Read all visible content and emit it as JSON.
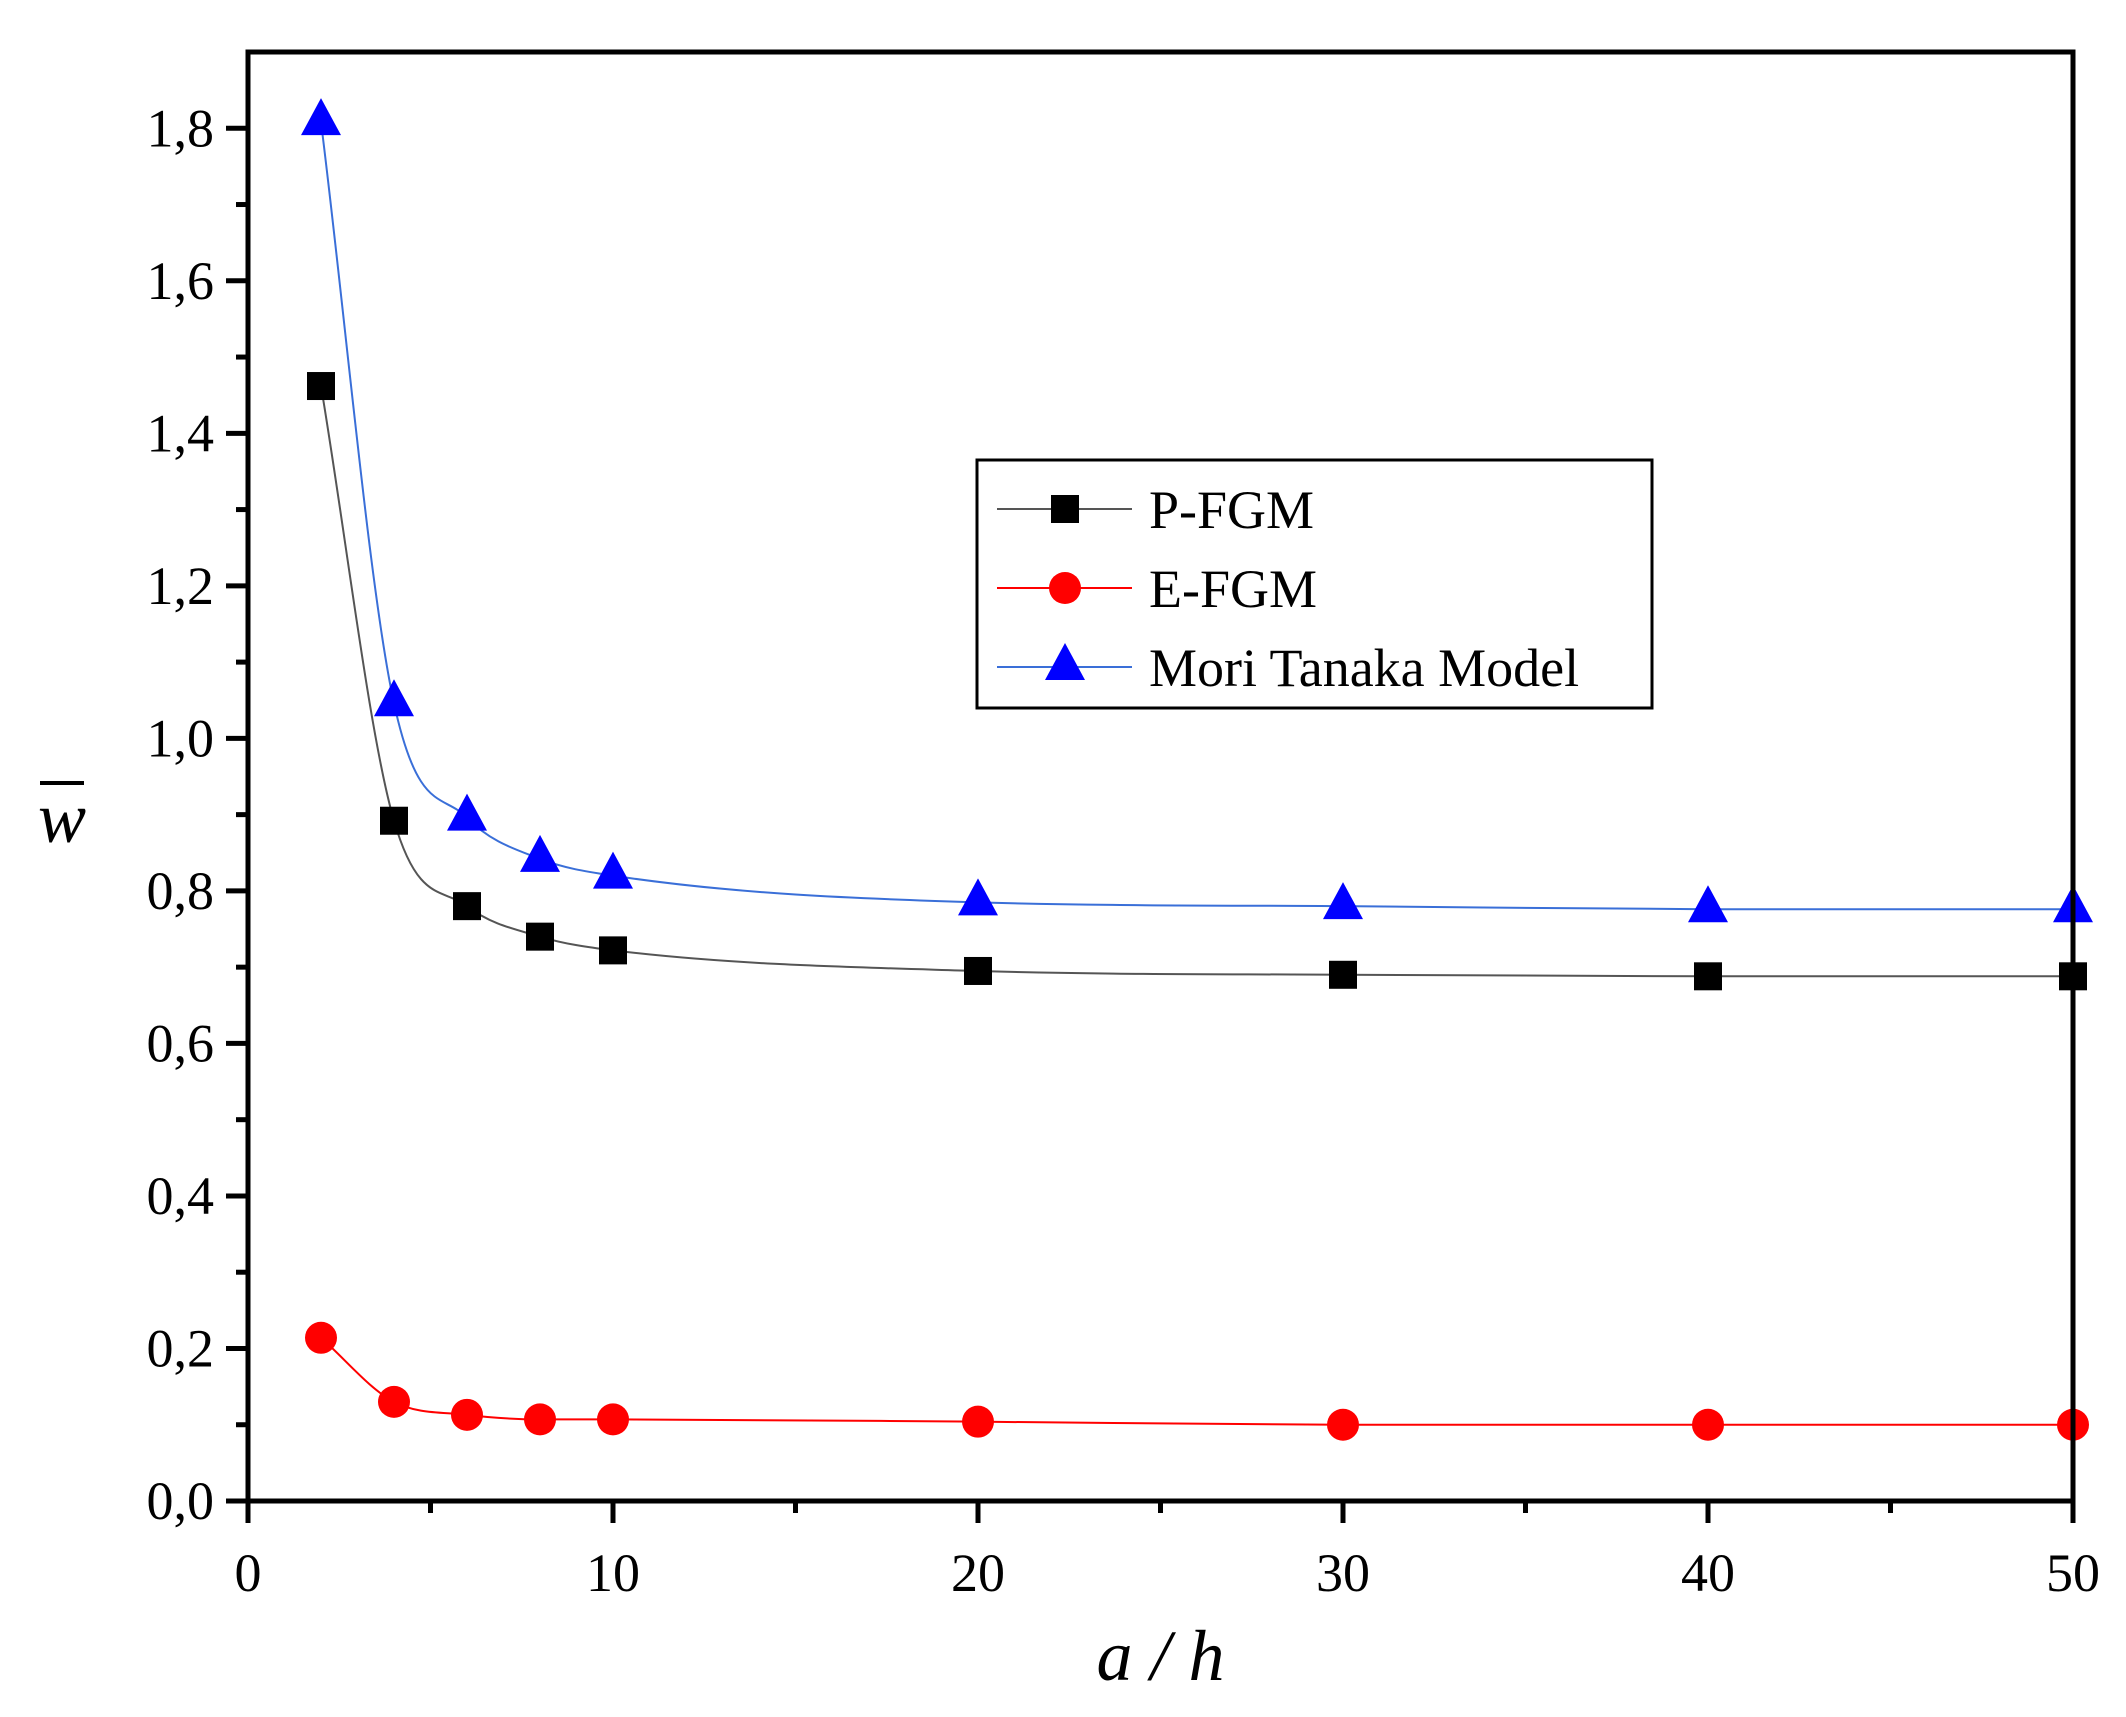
{
  "chart_data": {
    "type": "line",
    "title": "",
    "xlabel": "a / h",
    "ylabel": "w",
    "ylabel_overline": true,
    "xlim": [
      0,
      50
    ],
    "ylim": [
      0,
      1.9
    ],
    "xticks": [
      0,
      10,
      20,
      30,
      40,
      50
    ],
    "xtick_labels": [
      "0",
      "10",
      "20",
      "30",
      "40",
      "50"
    ],
    "xminor_ticks": [
      5,
      15,
      25,
      35,
      45
    ],
    "yticks": [
      0,
      0.2,
      0.4,
      0.6,
      0.8,
      1.0,
      1.2,
      1.4,
      1.6,
      1.8
    ],
    "ytick_labels": [
      "0,0",
      "0,2",
      "0,4",
      "0,6",
      "0,8",
      "1,0",
      "1,2",
      "1,4",
      "1,6",
      "1,8"
    ],
    "yminor_ticks": [
      0.1,
      0.3,
      0.5,
      0.7,
      0.9,
      1.1,
      1.3,
      1.5,
      1.7
    ],
    "grid": false,
    "legend_position": "top-right",
    "x": [
      2,
      4,
      6,
      8,
      10,
      20,
      30,
      40,
      50
    ],
    "series": [
      {
        "name": "P-FGM",
        "marker": "square",
        "marker_color": "#000000",
        "line_color": "#555555",
        "values": [
          1.462,
          0.892,
          0.78,
          0.74,
          0.722,
          0.695,
          0.69,
          0.688,
          0.688
        ]
      },
      {
        "name": "E-FGM",
        "marker": "circle",
        "marker_color": "#ff0000",
        "line_color": "#ff0000",
        "values": [
          0.214,
          0.13,
          0.113,
          0.107,
          0.107,
          0.104,
          0.1,
          0.1,
          0.1
        ]
      },
      {
        "name": "Mori Tanaka Model",
        "marker": "triangle",
        "marker_color": "#0000ff",
        "line_color": "#3a6fd8",
        "values": [
          1.808,
          1.046,
          0.896,
          0.842,
          0.82,
          0.785,
          0.78,
          0.776,
          0.776
        ]
      }
    ]
  }
}
